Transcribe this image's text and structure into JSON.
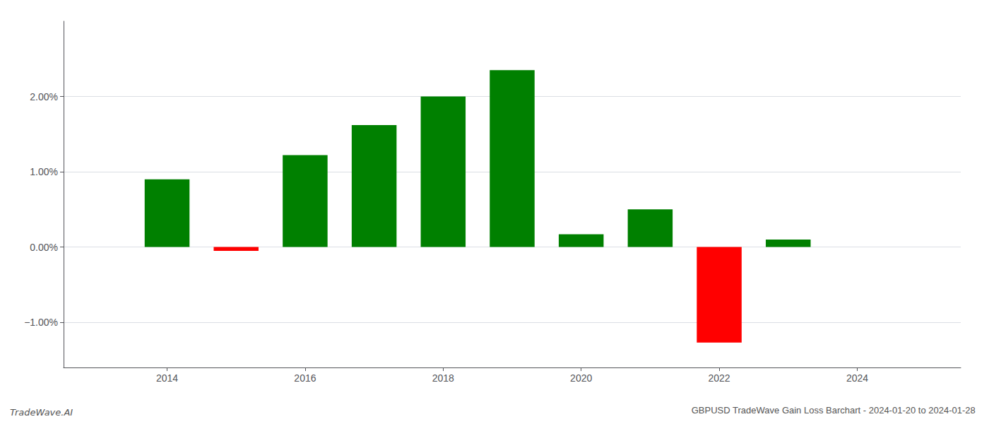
{
  "chart_data": {
    "type": "bar",
    "title": "GBPUSD TradeWave Gain Loss Barchart - 2024-01-20 to 2024-01-28",
    "annotations": [
      "TradeWave.AI"
    ],
    "x": [
      2014,
      2015,
      2016,
      2017,
      2018,
      2019,
      2020,
      2021,
      2022,
      2023
    ],
    "values": [
      0.009,
      -0.0005,
      0.0122,
      0.0162,
      0.02,
      0.0235,
      0.0017,
      0.005,
      -0.0127,
      0.001
    ],
    "colors": [
      "#008000",
      "#ff0000",
      "#008000",
      "#008000",
      "#008000",
      "#008000",
      "#008000",
      "#008000",
      "#ff0000",
      "#008000"
    ],
    "xlim": [
      2012.5,
      2025.5
    ],
    "xticks": [
      2014,
      2016,
      2018,
      2020,
      2022,
      2024
    ],
    "ylim": [
      -0.016,
      0.03
    ],
    "yticks": [
      {
        "value": -0.01,
        "label": "−1.00%"
      },
      {
        "value": 0,
        "label": "0.00%"
      },
      {
        "value": 0.01,
        "label": "1.00%"
      },
      {
        "value": 0.02,
        "label": "2.00%"
      }
    ],
    "grid": true
  }
}
